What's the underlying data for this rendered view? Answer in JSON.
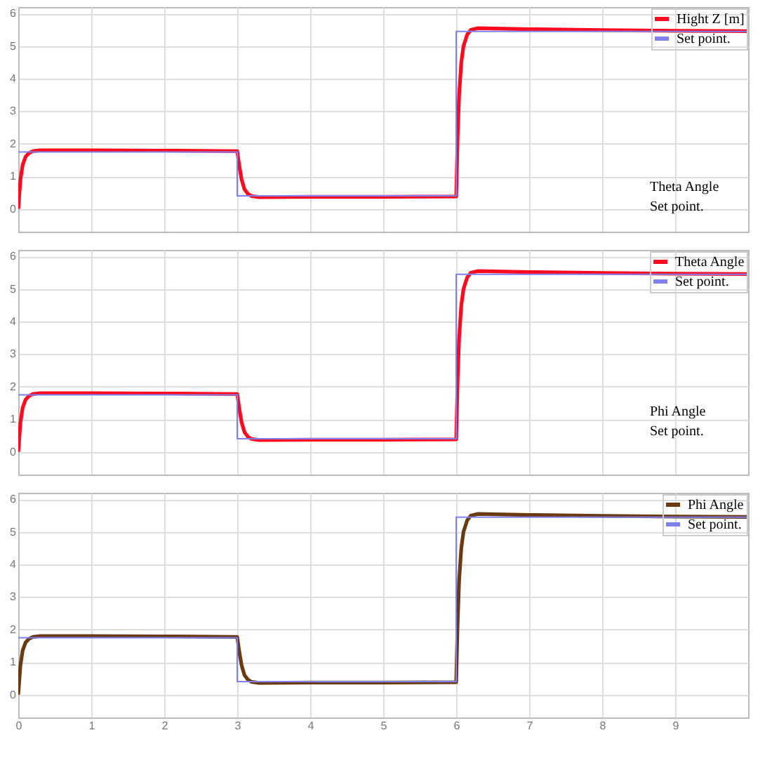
{
  "chart_data": [
    {
      "type": "line",
      "xlim": [
        0,
        10
      ],
      "ylim": [
        -0.7,
        6.2
      ],
      "xticks": [
        0,
        1,
        2,
        3,
        4,
        5,
        6,
        7,
        8,
        9
      ],
      "yticks": [
        0,
        1,
        2,
        3,
        4,
        5,
        6
      ],
      "grid": true,
      "legend": "top right",
      "tick_labels": "y",
      "annotations": [
        "Theta Angle",
        "Set point."
      ],
      "series": [
        {
          "name": "Hight Z [m]",
          "color": "#ff0a1e",
          "x": [
            0,
            0.03,
            0.06,
            0.1,
            0.15,
            0.2,
            0.3,
            1,
            2,
            3,
            3.03,
            3.06,
            3.1,
            3.15,
            3.2,
            3.3,
            4,
            5,
            6,
            6.02,
            6.04,
            6.07,
            6.1,
            6.15,
            6.2,
            6.3,
            7,
            8,
            9,
            10
          ],
          "values": [
            0,
            0.9,
            1.35,
            1.6,
            1.72,
            1.77,
            1.8,
            1.8,
            1.79,
            1.77,
            1.3,
            0.9,
            0.6,
            0.45,
            0.39,
            0.36,
            0.37,
            0.37,
            0.38,
            2.2,
            3.5,
            4.5,
            5.0,
            5.35,
            5.5,
            5.55,
            5.52,
            5.49,
            5.47,
            5.46
          ]
        },
        {
          "name": "Set point.",
          "type": "step",
          "color": "#8080f0",
          "x": [
            0,
            3,
            6,
            10
          ],
          "values": [
            1.75,
            0.4,
            5.45,
            5.45
          ]
        }
      ]
    },
    {
      "type": "line",
      "xlim": [
        0,
        10
      ],
      "ylim": [
        -0.7,
        6.2
      ],
      "xticks": [
        0,
        1,
        2,
        3,
        4,
        5,
        6,
        7,
        8,
        9
      ],
      "yticks": [
        0,
        1,
        2,
        3,
        4,
        5,
        6
      ],
      "grid": true,
      "legend": "top right",
      "tick_labels": "y",
      "annotations": [
        "Phi Angle",
        "Set point."
      ],
      "series": [
        {
          "name": "Theta Angle",
          "color": "#ff0a1e",
          "x": [
            0,
            0.03,
            0.06,
            0.1,
            0.15,
            0.2,
            0.3,
            1,
            2,
            3,
            3.03,
            3.06,
            3.1,
            3.15,
            3.2,
            3.3,
            4,
            5,
            6,
            6.02,
            6.04,
            6.07,
            6.1,
            6.15,
            6.2,
            6.3,
            7,
            8,
            9,
            10
          ],
          "values": [
            0,
            0.9,
            1.35,
            1.6,
            1.72,
            1.77,
            1.8,
            1.8,
            1.79,
            1.77,
            1.3,
            0.9,
            0.6,
            0.45,
            0.39,
            0.36,
            0.37,
            0.37,
            0.38,
            2.2,
            3.5,
            4.5,
            5.0,
            5.35,
            5.5,
            5.55,
            5.52,
            5.49,
            5.47,
            5.46
          ]
        },
        {
          "name": "Set point.",
          "type": "step",
          "color": "#8080f0",
          "x": [
            0,
            3,
            6,
            10
          ],
          "values": [
            1.75,
            0.4,
            5.45,
            5.45
          ]
        }
      ]
    },
    {
      "type": "line",
      "xlim": [
        0,
        10
      ],
      "ylim": [
        -0.7,
        6.2
      ],
      "xticks": [
        0,
        1,
        2,
        3,
        4,
        5,
        6,
        7,
        8,
        9
      ],
      "yticks": [
        0,
        1,
        2,
        3,
        4,
        5,
        6
      ],
      "grid": true,
      "legend": "top right",
      "series": [
        {
          "name": "Phi Angle",
          "color": "#6a3a12",
          "x": [
            0,
            0.03,
            0.06,
            0.1,
            0.15,
            0.2,
            0.3,
            1,
            2,
            3,
            3.03,
            3.06,
            3.1,
            3.15,
            3.2,
            3.3,
            4,
            5,
            6,
            6.02,
            6.04,
            6.07,
            6.1,
            6.15,
            6.2,
            6.3,
            7,
            8,
            9,
            10
          ],
          "values": [
            0,
            0.9,
            1.35,
            1.6,
            1.72,
            1.77,
            1.8,
            1.8,
            1.79,
            1.77,
            1.3,
            0.9,
            0.6,
            0.45,
            0.39,
            0.36,
            0.37,
            0.37,
            0.38,
            2.2,
            3.5,
            4.5,
            5.0,
            5.35,
            5.5,
            5.55,
            5.52,
            5.49,
            5.47,
            5.46
          ]
        },
        {
          "name": "Set point.",
          "type": "step",
          "color": "#8080f0",
          "x": [
            0,
            3,
            6,
            10
          ],
          "values": [
            1.75,
            0.4,
            5.45,
            5.45
          ]
        }
      ]
    }
  ]
}
